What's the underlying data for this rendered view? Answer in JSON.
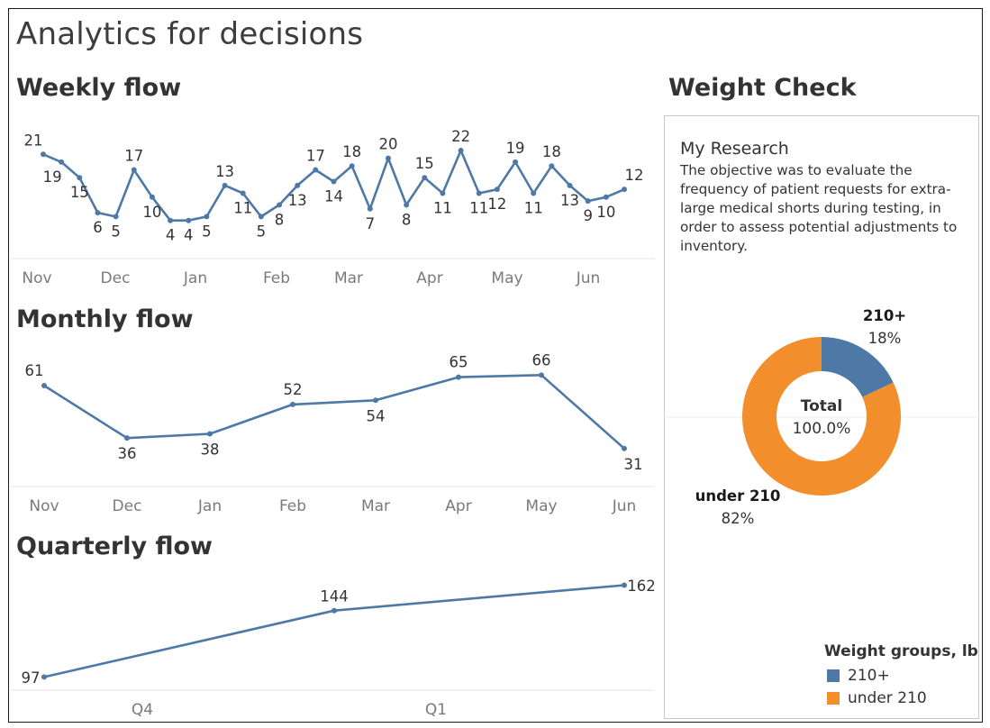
{
  "dashboard": {
    "title": "Analytics for decisions",
    "weekly_title": "Weekly flow",
    "monthly_title": "Monthly flow",
    "quarterly_title": "Quarterly flow",
    "weight_title": "Weight Check"
  },
  "research": {
    "title": "My Research",
    "text": "The objective was to evaluate the frequency of patient requests for extra-large medical shorts during testing, in order to assess potential adjustments to inventory."
  },
  "legend": {
    "title": "Weight groups, lb",
    "items": [
      {
        "label": "210+",
        "color": "#4e79a7"
      },
      {
        "label": "under 210",
        "color": "#f28e2b"
      }
    ]
  },
  "colors": {
    "line": "#4e79a7",
    "pie_210_plus": "#4e79a7",
    "pie_under_210": "#f28e2b",
    "axis_text": "#7a7a7a",
    "frame": "#1a1a1a"
  },
  "chart_data": [
    {
      "type": "line",
      "title": "Weekly flow",
      "x_ticks": [
        "Nov",
        "Dec",
        "Jan",
        "Feb",
        "Mar",
        "Apr",
        "May",
        "Jun"
      ],
      "values": [
        21,
        19,
        15,
        6,
        5,
        17,
        10,
        4,
        4,
        5,
        13,
        11,
        5,
        8,
        13,
        17,
        14,
        18,
        7,
        20,
        8,
        15,
        11,
        22,
        11,
        12,
        19,
        11,
        18,
        13,
        9,
        10,
        12
      ],
      "ylim": [
        0,
        25
      ]
    },
    {
      "type": "line",
      "title": "Monthly flow",
      "categories": [
        "Nov",
        "Dec",
        "Jan",
        "Feb",
        "Mar",
        "Apr",
        "May",
        "Jun"
      ],
      "values": [
        61,
        36,
        38,
        52,
        54,
        65,
        66,
        31
      ],
      "ylim": [
        0,
        70
      ]
    },
    {
      "type": "line",
      "title": "Quarterly flow",
      "categories": [
        "Q4",
        "Q1",
        ""
      ],
      "values": [
        97,
        144,
        162
      ],
      "ylim": [
        80,
        170
      ]
    },
    {
      "type": "pie",
      "title": "Weight Check",
      "center_label": "Total",
      "center_value": "100.0%",
      "slices": [
        {
          "label": "210+",
          "percent_label": "18%",
          "value": 18
        },
        {
          "label": "under 210",
          "percent_label": "82%",
          "value": 82
        }
      ]
    }
  ]
}
